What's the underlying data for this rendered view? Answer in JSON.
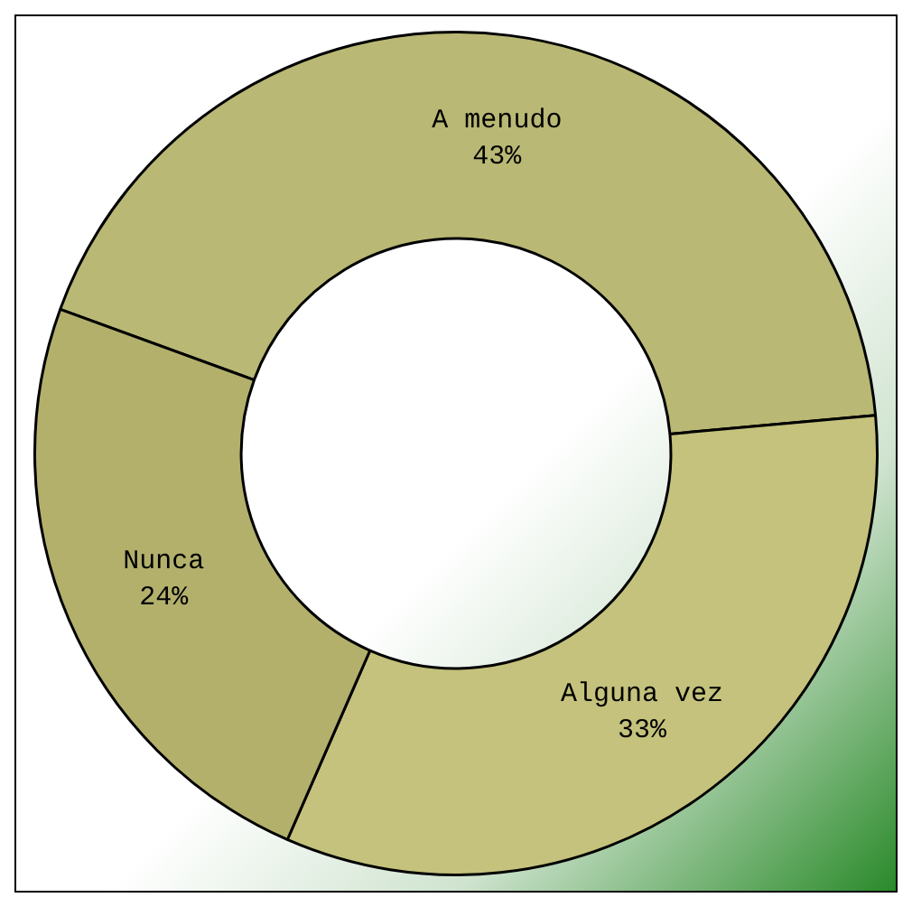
{
  "chart_data": {
    "type": "donut",
    "categories": [
      "A menudo",
      "Alguna vez",
      "Nunca"
    ],
    "values": [
      43,
      33,
      24
    ],
    "colors": [
      "#b9b874",
      "#c4c27c",
      "#b3b06c"
    ],
    "value_labels": [
      "43%",
      "33%",
      "24%"
    ],
    "legend": false
  }
}
